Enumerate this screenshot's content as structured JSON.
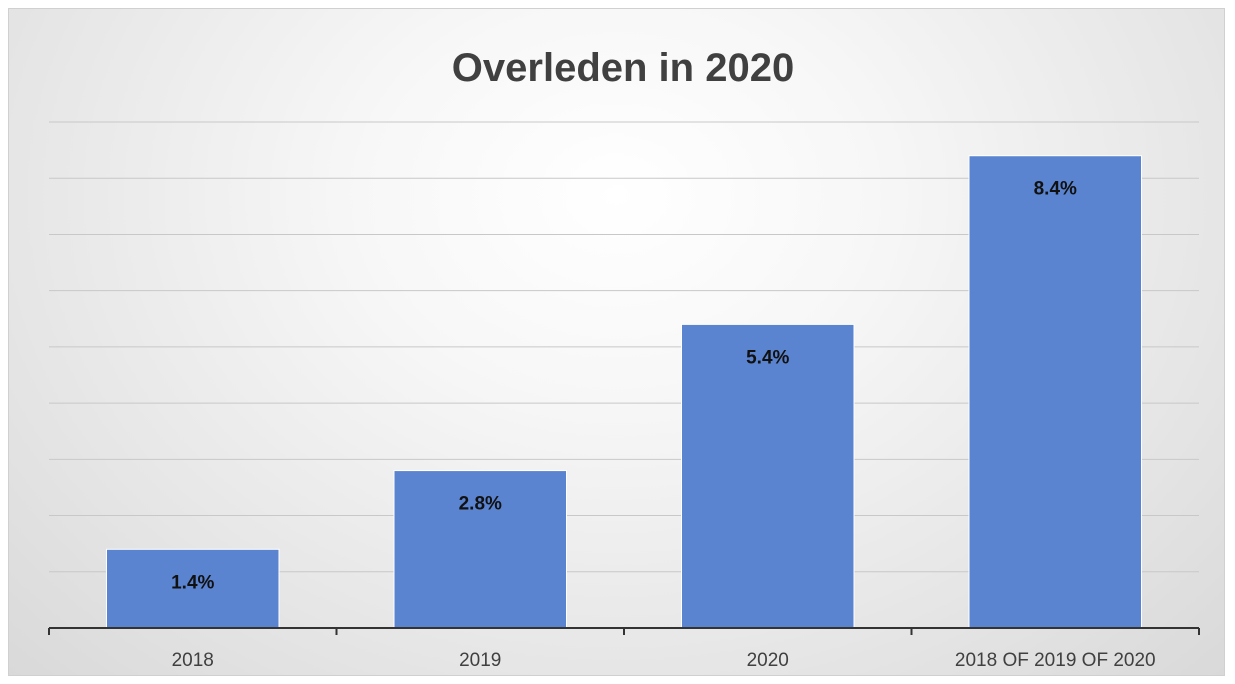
{
  "chart_data": {
    "type": "bar",
    "title": "Overleden in 2020",
    "categories": [
      "2018",
      "2019",
      "2020",
      "2018 OF 2019 OF 2020"
    ],
    "values": [
      1.4,
      2.8,
      5.4,
      8.4
    ],
    "value_labels": [
      "1.4%",
      "2.8%",
      "5.4%",
      "8.4%"
    ],
    "xlabel": "",
    "ylabel": "",
    "ylim": [
      0,
      9
    ],
    "y_gridline_step": 1,
    "y_axis_labels_visible": false,
    "grid": true,
    "legend": "none",
    "bar_color": "#5b84d0"
  }
}
